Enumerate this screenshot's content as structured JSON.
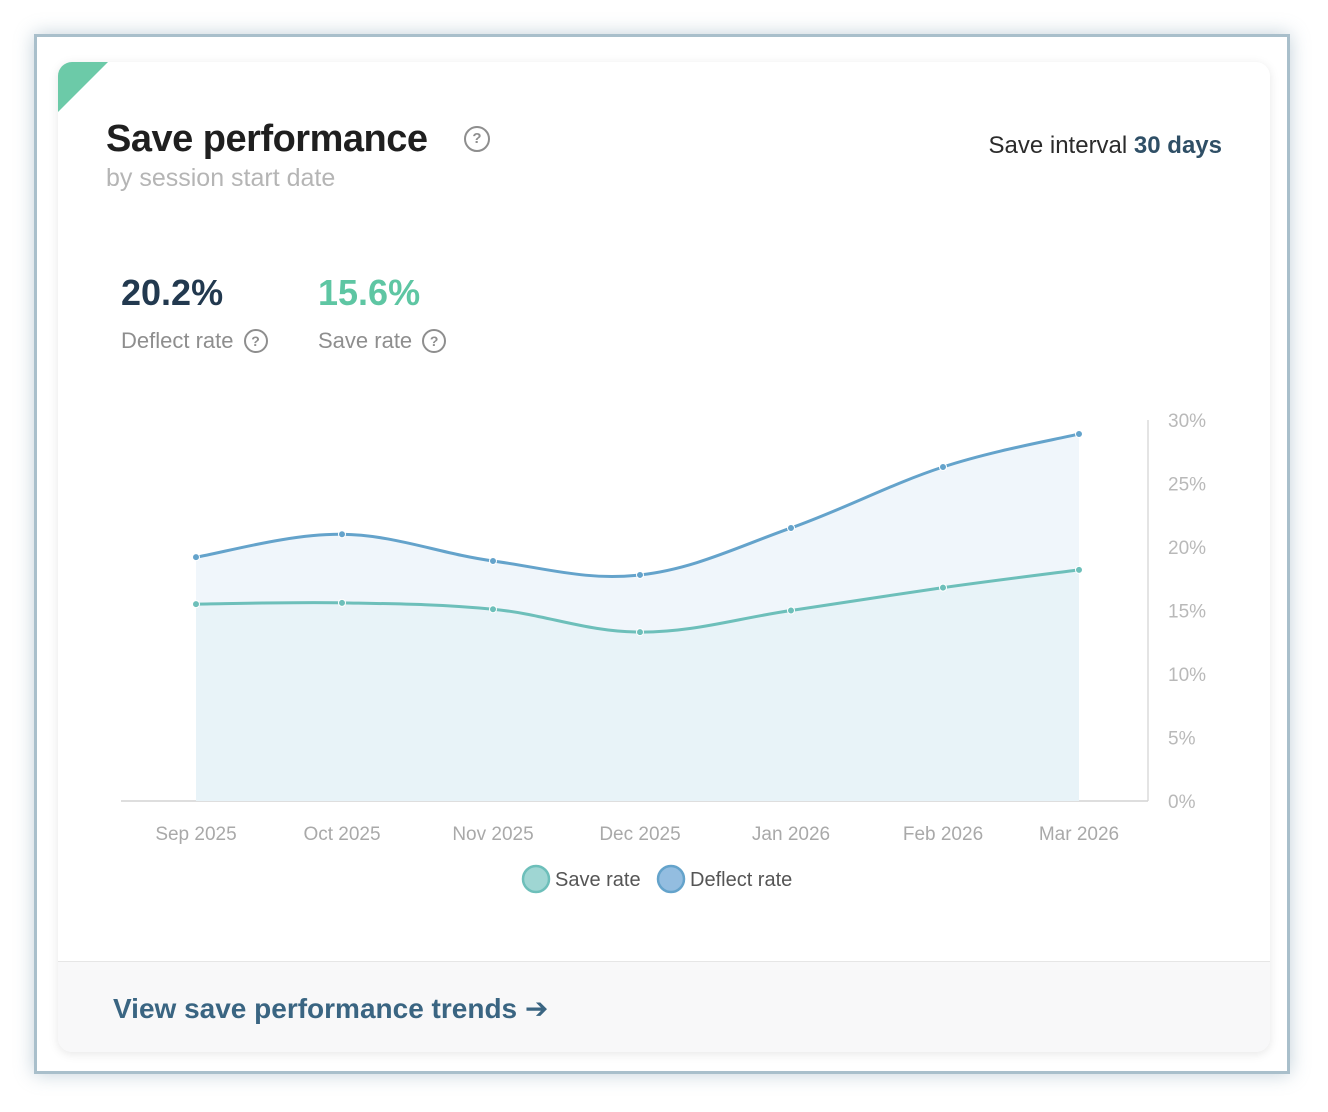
{
  "header": {
    "title": "Save performance",
    "subtitle": "by session start date",
    "interval_label": "Save interval",
    "interval_value": "30 days"
  },
  "metrics": [
    {
      "value": "20.2%",
      "label": "Deflect rate",
      "color": "#22394f"
    },
    {
      "value": "15.6%",
      "label": "Save rate",
      "color": "#5ec6a3"
    }
  ],
  "chart_data": {
    "type": "area",
    "categories": [
      "Sep 2025",
      "Oct 2025",
      "Nov 2025",
      "Dec 2025",
      "Jan 2026",
      "Feb 2026",
      "Mar 2026"
    ],
    "series": [
      {
        "name": "Save rate",
        "color": "#6dbfba",
        "values": [
          15.5,
          15.6,
          15.1,
          13.3,
          15.0,
          16.8,
          18.2
        ]
      },
      {
        "name": "Deflect rate",
        "color": "#64a3cb",
        "values": [
          19.2,
          21.0,
          18.9,
          17.8,
          21.5,
          26.3,
          28.9
        ]
      }
    ],
    "y_ticks": [
      "0%",
      "5%",
      "10%",
      "15%",
      "20%",
      "25%",
      "30%"
    ],
    "ylim": [
      0,
      30
    ],
    "y_axis_side": "right",
    "legend": "bottom-center",
    "grid": false
  },
  "footer": {
    "link_label": "View save performance trends ➔"
  }
}
